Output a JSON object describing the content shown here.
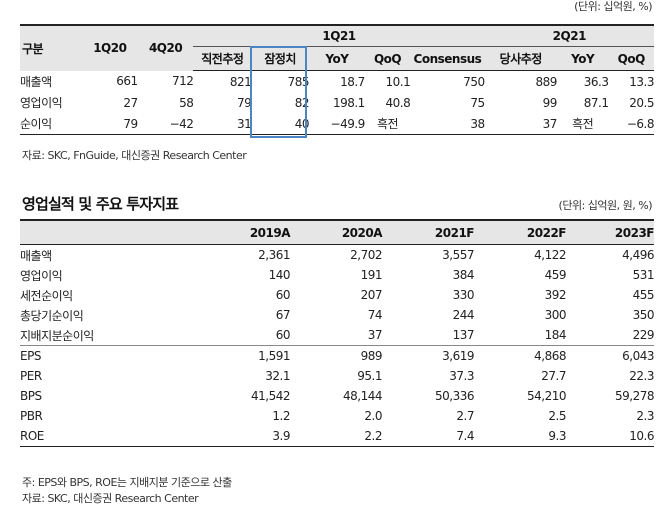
{
  "table1": {
    "unit": "(단위: 십억원, %)",
    "group_1q21": "1Q21",
    "group_2q21": "2Q21",
    "headers": {
      "label": "구분",
      "q1_20": "1Q20",
      "q4_20": "4Q20",
      "prev_est": "직전추정",
      "prelim": "잠정치",
      "yoy": "YoY",
      "qoq": "QoQ",
      "consensus": "Consensus",
      "cur_est": "당사추정",
      "yoy2": "YoY",
      "qoq2": "QoQ"
    },
    "rows": [
      {
        "label": "매출액",
        "q1_20": "661",
        "q4_20": "712",
        "prev_est": "821",
        "prelim": "785",
        "yoy": "18.7",
        "qoq": "10.1",
        "consensus": "750",
        "cur_est": "889",
        "yoy2": "36.3",
        "qoq2": "13.3"
      },
      {
        "label": "영업이익",
        "q1_20": "27",
        "q4_20": "58",
        "prev_est": "79",
        "prelim": "82",
        "yoy": "198.1",
        "qoq": "40.8",
        "consensus": "75",
        "cur_est": "99",
        "yoy2": "87.1",
        "qoq2": "20.5"
      },
      {
        "label": "순이익",
        "q1_20": "79",
        "q4_20": "−42",
        "prev_est": "31",
        "prelim": "40",
        "yoy": "−49.9",
        "qoq": "흑전",
        "consensus": "38",
        "cur_est": "37",
        "yoy2": "흑전",
        "qoq2": "−6.8"
      }
    ],
    "source": "자료: SKC, FnGuide, 대신증권 Research Center"
  },
  "table2": {
    "title": "영업실적 및 주요 투자지표",
    "unit": "(단위: 십억원, 원, %)",
    "years": [
      "2019A",
      "2020A",
      "2021F",
      "2022F",
      "2023F"
    ],
    "rows": [
      {
        "label": "매출액",
        "values": [
          "2,361",
          "2,702",
          "3,557",
          "4,122",
          "4,496"
        ]
      },
      {
        "label": "영업이익",
        "values": [
          "140",
          "191",
          "384",
          "459",
          "531"
        ]
      },
      {
        "label": "세전순이익",
        "values": [
          "60",
          "207",
          "330",
          "392",
          "455"
        ]
      },
      {
        "label": "총당기순이익",
        "values": [
          "67",
          "74",
          "244",
          "300",
          "350"
        ]
      },
      {
        "label": "지배지분순이익",
        "values": [
          "60",
          "37",
          "137",
          "184",
          "229"
        ]
      },
      {
        "label": "EPS",
        "values": [
          "1,591",
          "989",
          "3,619",
          "4,868",
          "6,043"
        ]
      },
      {
        "label": "PER",
        "values": [
          "32.1",
          "95.1",
          "37.3",
          "27.7",
          "22.3"
        ]
      },
      {
        "label": "BPS",
        "values": [
          "41,542",
          "48,144",
          "50,336",
          "54,210",
          "59,278"
        ]
      },
      {
        "label": "PBR",
        "values": [
          "1.2",
          "2.0",
          "2.7",
          "2.5",
          "2.3"
        ]
      },
      {
        "label": "ROE",
        "values": [
          "3.9",
          "2.2",
          "7.4",
          "9.3",
          "10.6"
        ]
      }
    ],
    "note": "주: EPS와 BPS, ROE는 지배지분 기준으로 산출",
    "source": "자료: SKC, 대신증권 Research Center"
  }
}
